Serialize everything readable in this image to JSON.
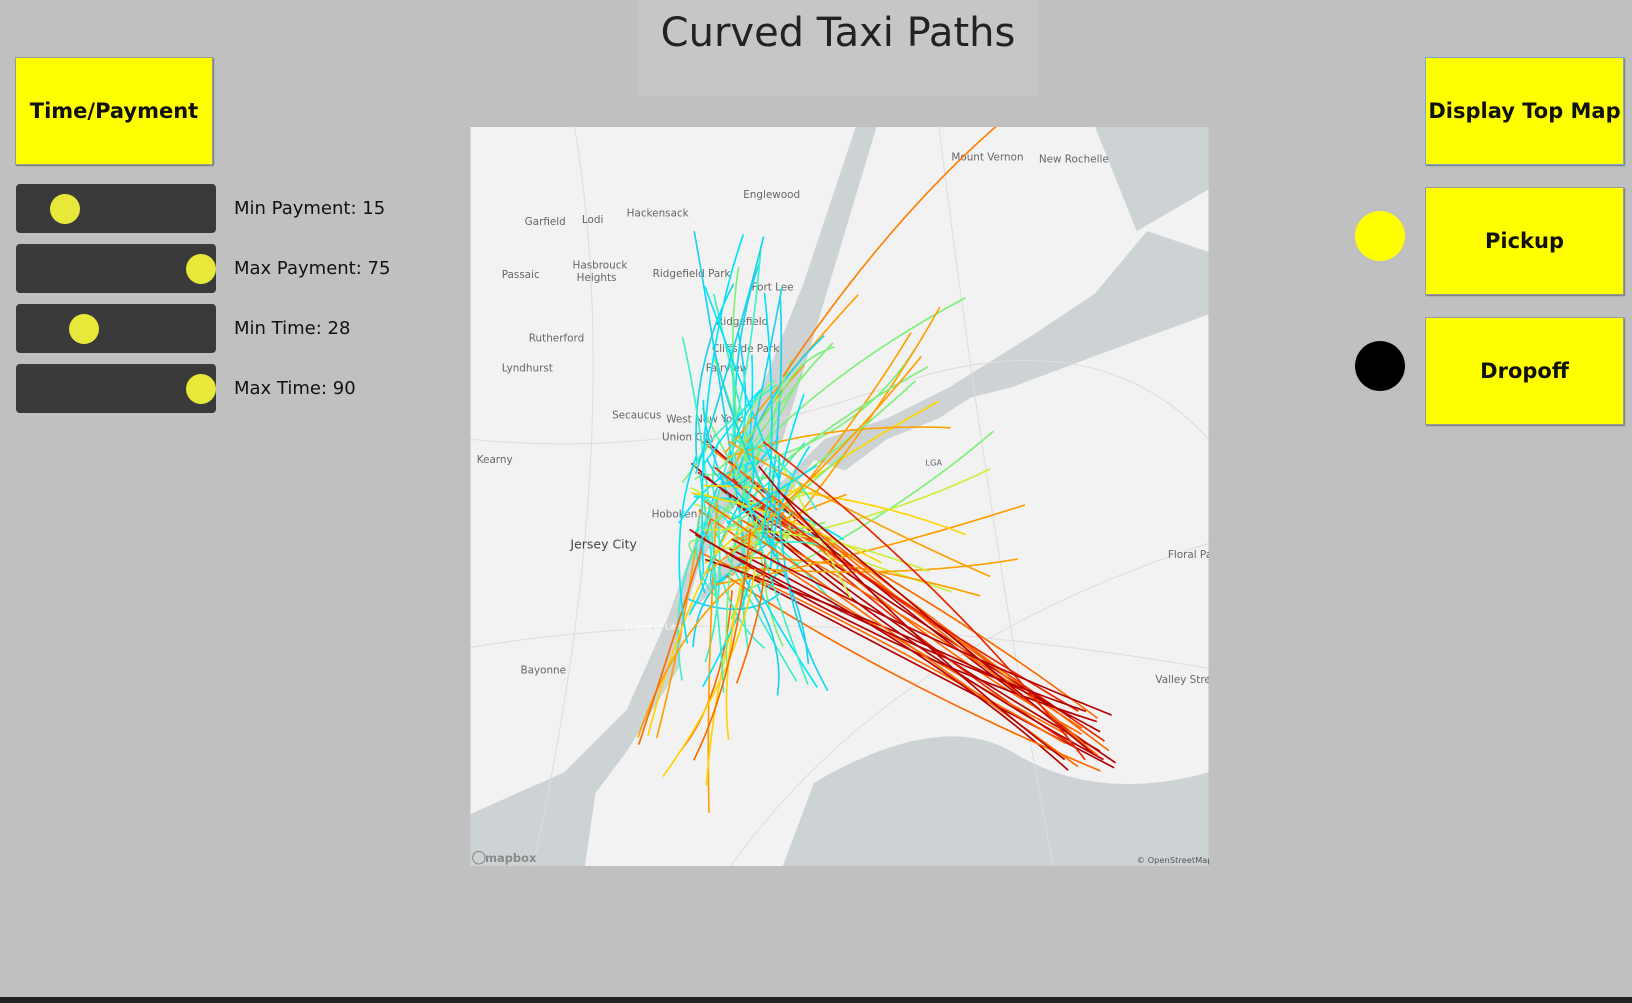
{
  "header": {
    "title": "Curved Taxi Paths"
  },
  "left_panel": {
    "button": "Time/Payment",
    "sliders": [
      {
        "label": "Min Payment: 15"
      },
      {
        "label": "Max Payment: 75"
      },
      {
        "label": "Min Time: 28"
      },
      {
        "label": "Max Time: 90"
      }
    ]
  },
  "right_panel": {
    "buttons": [
      "Display Top Map",
      "Pickup",
      "Dropoff"
    ]
  },
  "map": {
    "places": [
      "Englewood",
      "Hackensack",
      "Garfield",
      "Lodi",
      "Passaic",
      "Hasbrouck",
      "Heights",
      "Ridgefield Park",
      "Fort Lee",
      "Ridgefield",
      "Cliffside Park",
      "Fairview",
      "Rutherford",
      "Lyndhurst",
      "Secaucus",
      "West New York",
      "Union City",
      "Kearny",
      "Hoboken",
      "Jersey City",
      "Statue of Liberty",
      "Bayonne",
      "LGA",
      "Floral Pa",
      "Valley Strea",
      "Mount Vernon",
      "New Rochelle"
    ],
    "attribution": "© OpenStreetMap",
    "logo": "mapbox"
  }
}
